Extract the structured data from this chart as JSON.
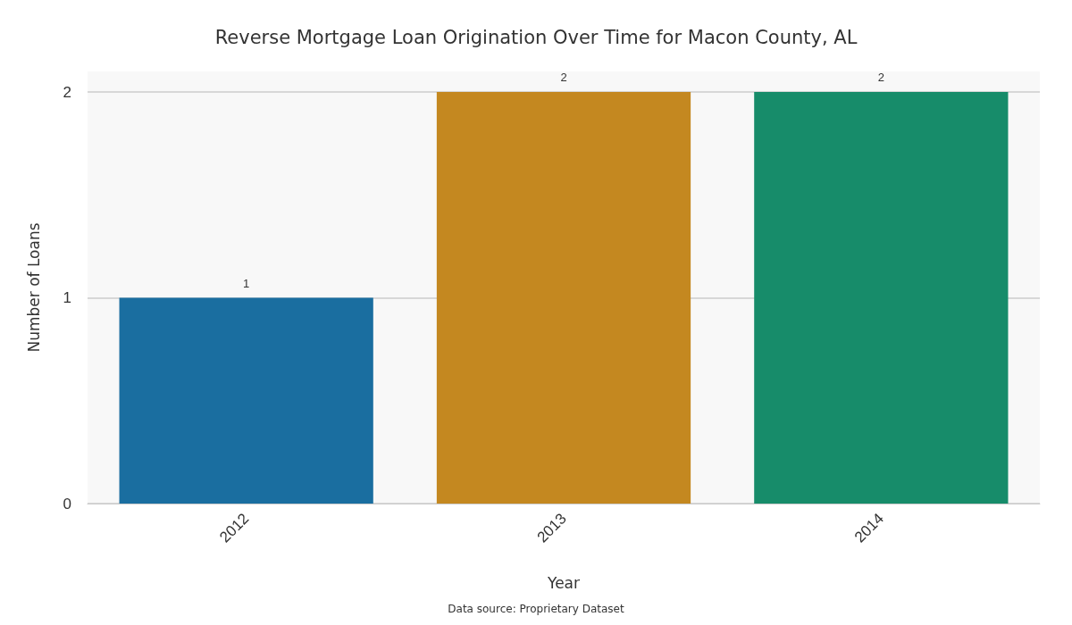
{
  "chart_data": {
    "type": "bar",
    "title": "Reverse Mortgage Loan Origination Over Time for Macon County, AL",
    "xlabel": "Year",
    "ylabel": "Number of Loans",
    "categories": [
      "2012",
      "2013",
      "2014"
    ],
    "values": [
      1,
      2,
      2
    ],
    "colors": [
      "#1a6ea0",
      "#c48820",
      "#178c6a"
    ],
    "ylim": [
      0,
      2.1
    ],
    "yticks": [
      0,
      1,
      2
    ],
    "grid": "y",
    "data_labels": true,
    "annotations": [
      "Data source: Proprietary Dataset"
    ]
  }
}
